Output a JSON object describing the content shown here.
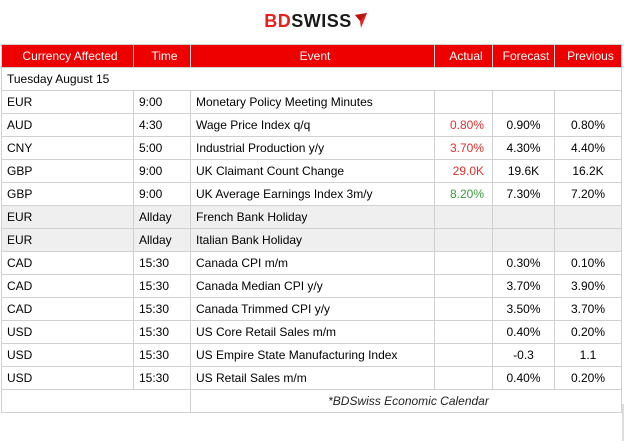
{
  "logo": {
    "bd": "BD",
    "swiss": "SWISS",
    "colors": {
      "bd": "#e8211d",
      "swiss": "#1a1a1a"
    }
  },
  "headers": {
    "currency": "Currency Affected",
    "time": "Time",
    "event": "Event",
    "actual": "Actual",
    "forecast": "Forecast",
    "previous": "Previous"
  },
  "date_label": "Tuesday August 15",
  "rows": [
    {
      "currency": "EUR",
      "time": "9:00",
      "event": "Monetary Policy Meeting Minutes",
      "actual": "",
      "forecast": "",
      "previous": ""
    },
    {
      "currency": "AUD",
      "time": "4:30",
      "event": "Wage Price Index q/q",
      "actual": "0.80%",
      "forecast": "0.90%",
      "previous": "0.80%"
    },
    {
      "currency": "CNY",
      "time": "5:00",
      "event": "Industrial Production y/y",
      "actual": "3.70%",
      "forecast": "4.30%",
      "previous": "4.40%"
    },
    {
      "currency": "GBP",
      "time": "9:00",
      "event": "UK Claimant Count Change",
      "actual": "29.0K",
      "forecast": "19.6K",
      "previous": "16.2K"
    },
    {
      "currency": "GBP",
      "time": "9:00",
      "event": "UK Average Earnings Index 3m/y",
      "actual": "8.20%",
      "forecast": "7.30%",
      "previous": "7.20%"
    },
    {
      "currency": "EUR",
      "time": "Allday",
      "event": "French Bank Holiday",
      "actual": "",
      "forecast": "",
      "previous": ""
    },
    {
      "currency": "EUR",
      "time": "Allday",
      "event": "Italian Bank Holiday",
      "actual": "",
      "forecast": "",
      "previous": ""
    },
    {
      "currency": "CAD",
      "time": "15:30",
      "event": "Canada CPI m/m",
      "actual": "",
      "forecast": "0.30%",
      "previous": "0.10%"
    },
    {
      "currency": "CAD",
      "time": "15:30",
      "event": "Canada Median CPI y/y",
      "actual": "",
      "forecast": "3.70%",
      "previous": "3.90%"
    },
    {
      "currency": "CAD",
      "time": "15:30",
      "event": "Canada Trimmed CPI y/y",
      "actual": "",
      "forecast": "3.50%",
      "previous": "3.70%"
    },
    {
      "currency": "USD",
      "time": "15:30",
      "event": "US Core Retail Sales m/m",
      "actual": "",
      "forecast": "0.40%",
      "previous": "0.20%"
    },
    {
      "currency": "USD",
      "time": "15:30",
      "event": "US Empire State Manufacturing Index",
      "actual": "",
      "forecast": "-0.3",
      "previous": "1.1"
    },
    {
      "currency": "USD",
      "time": "15:30",
      "event": "US Retail Sales m/m",
      "actual": "",
      "forecast": "0.40%",
      "previous": "0.20%"
    }
  ],
  "note": "*BDSwiss Economic Calendar",
  "colors": {
    "header_bg": "#ee0000",
    "actual_red": "#e03030",
    "actual_green": "#3c9a3c",
    "holiday_bg": "#efefef"
  }
}
